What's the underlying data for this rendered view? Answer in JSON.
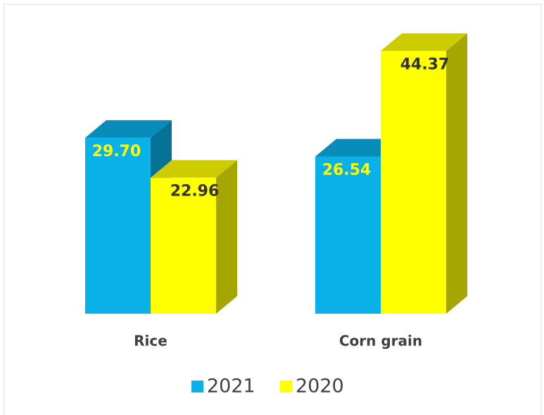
{
  "chart_data": {
    "type": "bar3d",
    "categories": [
      "Rice",
      "Corn grain"
    ],
    "series": [
      {
        "name": "2021",
        "color": "#0ab0e8",
        "values": [
          29.7,
          26.54
        ],
        "value_labels": [
          "29.70",
          "26.54"
        ]
      },
      {
        "name": "2020",
        "color": "#ffff00",
        "values": [
          22.96,
          44.37
        ],
        "value_labels": [
          "22.96",
          "44.37"
        ]
      }
    ]
  }
}
